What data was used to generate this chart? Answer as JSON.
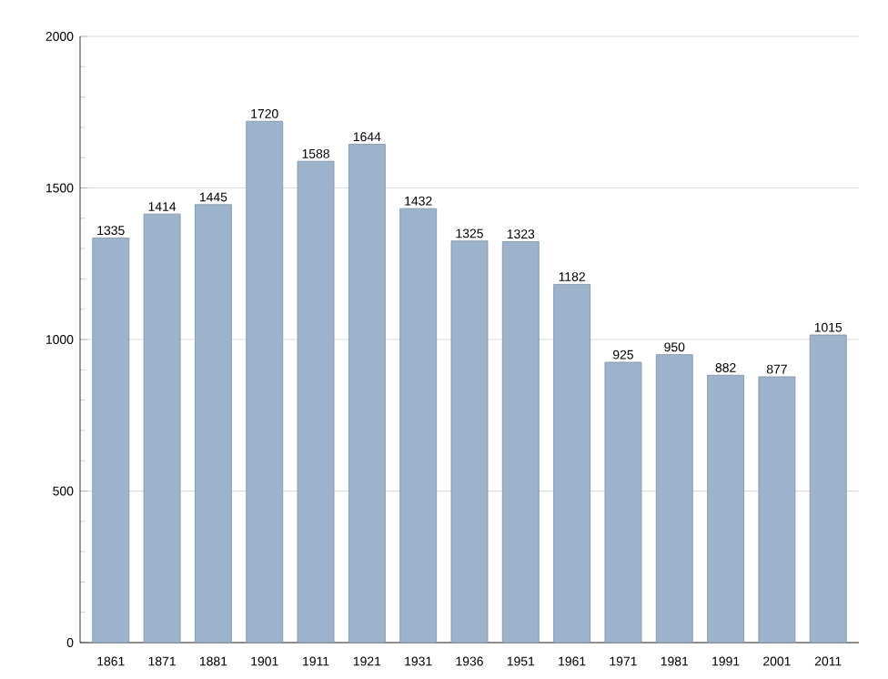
{
  "chart_data": {
    "type": "bar",
    "categories": [
      "1861",
      "1871",
      "1881",
      "1901",
      "1911",
      "1921",
      "1931",
      "1936",
      "1951",
      "1961",
      "1971",
      "1981",
      "1991",
      "2001",
      "2011"
    ],
    "values": [
      1335,
      1414,
      1445,
      1720,
      1588,
      1644,
      1432,
      1325,
      1323,
      1182,
      925,
      950,
      882,
      877,
      1015
    ],
    "color": "#9db3cc",
    "ylim": [
      0,
      2000
    ],
    "yticks": [
      0,
      500,
      1000,
      1500,
      2000
    ],
    "grid": "y",
    "data_labels": true
  }
}
